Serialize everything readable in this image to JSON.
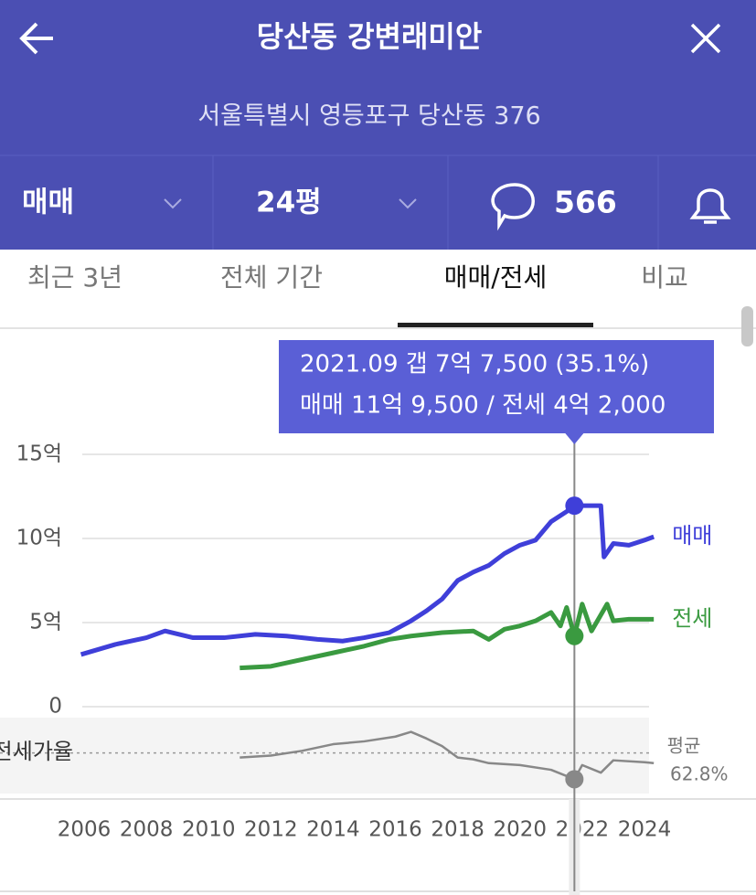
{
  "header": {
    "title": "당산동 강변래미안",
    "address": "서울특별시 영등포구 당산동 376"
  },
  "toolbar": {
    "deal_type": "매매",
    "size": "24평",
    "comment_count": 566
  },
  "tabs": {
    "items": [
      "최근 3년",
      "전체 기간",
      "매매/전세",
      "비교"
    ],
    "active": 2
  },
  "tooltip": {
    "lines": [
      "2021.09  갭 7억 7,500 (35.1%)",
      "매매 11억 9,500 / 전세 4억 2,000"
    ]
  },
  "chart_data": [
    {
      "type": "line",
      "xlim": [
        2005.8,
        2024.4
      ],
      "xticks": [
        2006,
        2008,
        2010,
        2012,
        2014,
        2016,
        2018,
        2020,
        2022,
        2024
      ],
      "ylim": [
        0,
        15
      ],
      "yticks": [
        {
          "value": 0,
          "label": "0"
        },
        {
          "value": 5,
          "label": "5억"
        },
        {
          "value": 10,
          "label": "10억"
        },
        {
          "value": 15,
          "label": "15억"
        }
      ],
      "grid": true,
      "highlight_x": 2021.75,
      "series": [
        {
          "name": "매매",
          "color": "#3f3fd9",
          "x": [
            2005.9,
            2007,
            2008,
            2008.6,
            2009.5,
            2010.5,
            2011.5,
            2012.5,
            2013.5,
            2014.3,
            2015,
            2015.8,
            2016.5,
            2017,
            2017.5,
            2018,
            2018.5,
            2019,
            2019.5,
            2020,
            2020.5,
            2021,
            2021.5,
            2021.75,
            2022,
            2022.6,
            2022.7,
            2023,
            2023.5,
            2024,
            2024.3
          ],
          "values": [
            3.1,
            3.7,
            4.1,
            4.5,
            4.1,
            4.1,
            4.3,
            4.2,
            4.0,
            3.9,
            4.1,
            4.4,
            5.1,
            5.7,
            6.4,
            7.5,
            8.0,
            8.4,
            9.1,
            9.6,
            9.9,
            11.0,
            11.6,
            11.95,
            11.95,
            11.95,
            8.9,
            9.7,
            9.6,
            9.9,
            10.1
          ]
        },
        {
          "name": "전세",
          "color": "#3a9a40",
          "x": [
            2011,
            2012,
            2013,
            2014,
            2015,
            2015.8,
            2016.5,
            2017.5,
            2018.5,
            2019,
            2019.5,
            2020,
            2020.5,
            2021,
            2021.3,
            2021.5,
            2021.75,
            2022,
            2022.3,
            2022.8,
            2023,
            2023.5,
            2024,
            2024.3
          ],
          "values": [
            2.3,
            2.4,
            2.8,
            3.2,
            3.6,
            4.0,
            4.2,
            4.4,
            4.5,
            4.0,
            4.6,
            4.8,
            5.1,
            5.6,
            4.8,
            5.9,
            4.2,
            6.1,
            4.5,
            6.1,
            5.1,
            5.2,
            5.2,
            5.2
          ]
        }
      ]
    },
    {
      "type": "line",
      "xlim": [
        2005.8,
        2024.4
      ],
      "ylim": [
        20,
        100
      ],
      "highlight_x": 2021.75,
      "average": {
        "label": "평균",
        "value": 62.8,
        "value_label": "62.8%"
      },
      "series": [
        {
          "name": "전세가율",
          "color": "#888888",
          "x": [
            2011,
            2012,
            2013,
            2014,
            2015,
            2016,
            2016.5,
            2017,
            2017.5,
            2018,
            2018.5,
            2019,
            2020,
            2021,
            2021.75,
            2022,
            2022.6,
            2023,
            2024,
            2024.3
          ],
          "values": [
            58,
            60,
            65,
            72,
            75,
            80,
            85,
            78,
            70,
            58,
            56,
            52,
            50,
            45,
            35.1,
            50,
            42,
            55,
            53,
            52
          ]
        }
      ]
    }
  ]
}
